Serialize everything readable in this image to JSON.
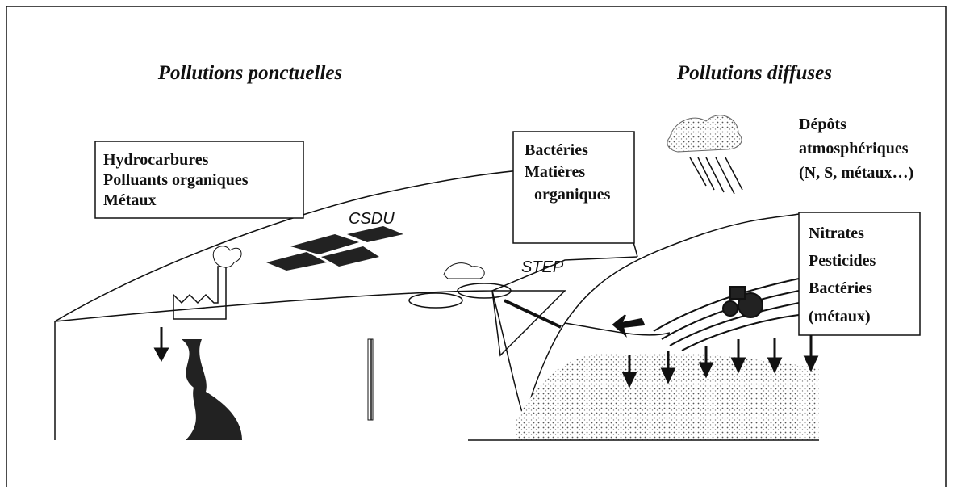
{
  "titles": {
    "left": "Pollutions ponctuelles",
    "right": "Pollutions diffuses"
  },
  "point_sources_box": {
    "lines": [
      "Hydrocarbures",
      "Polluants organiques",
      "Métaux"
    ]
  },
  "csdu_label": "CSDU",
  "step_box": {
    "lines": [
      "Bactéries",
      "Matières",
      "organiques"
    ]
  },
  "step_label": "STEP",
  "atmospheric": {
    "lines": [
      "Dépôts",
      "atmosphériques",
      "(N, S, métaux…)"
    ]
  },
  "diffuse_box": {
    "lines": [
      "Nitrates",
      "Pesticides",
      "Bactéries",
      "(métaux)"
    ]
  }
}
